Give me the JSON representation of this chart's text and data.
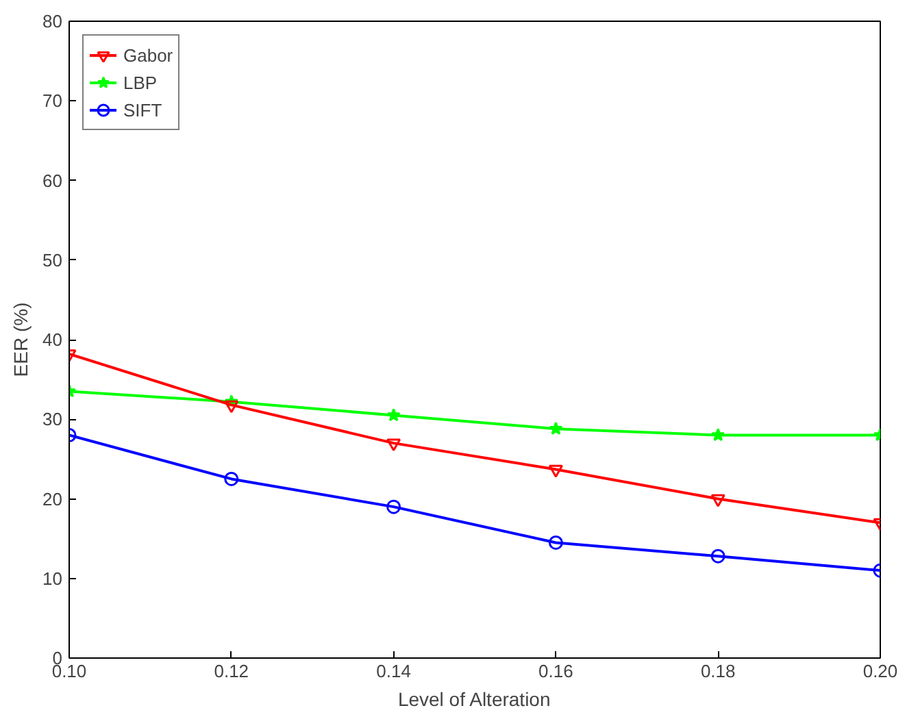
{
  "chart_data": {
    "type": "line",
    "xlabel": "Level of Alteration",
    "ylabel": "EER (%)",
    "x": [
      0.1,
      0.12,
      0.14,
      0.16,
      0.18,
      0.2
    ],
    "series": [
      {
        "name": "Gabor",
        "color": "#ff0000",
        "marker": "triangle",
        "values": [
          38.2,
          31.8,
          27,
          23.7,
          20,
          17
        ]
      },
      {
        "name": "LBP",
        "color": "#00ff00",
        "marker": "star",
        "values": [
          33.5,
          32.2,
          30.5,
          28.8,
          28,
          28
        ]
      },
      {
        "name": "SIFT",
        "color": "#0000ff",
        "marker": "circle",
        "values": [
          28,
          22.5,
          19,
          14.5,
          12.8,
          11
        ]
      }
    ],
    "xlim": [
      0.1,
      0.2
    ],
    "ylim": [
      0,
      80
    ],
    "xticks": [
      {
        "value": 0.1,
        "label": "0.10"
      },
      {
        "value": 0.12,
        "label": "0.12"
      },
      {
        "value": 0.14,
        "label": "0.14"
      },
      {
        "value": 0.16,
        "label": "0.16"
      },
      {
        "value": 0.18,
        "label": "0.18"
      },
      {
        "value": 0.2,
        "label": "0.20"
      }
    ],
    "yticks": [
      0,
      10,
      20,
      30,
      40,
      50,
      60,
      70,
      80
    ],
    "grid": false,
    "legend": "top left",
    "line_style": "solid"
  }
}
